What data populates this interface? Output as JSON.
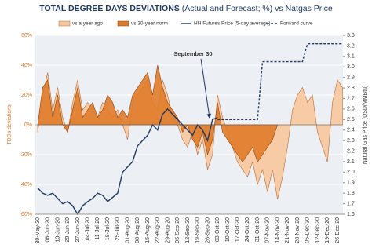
{
  "chart_data": {
    "type": "line",
    "title": "TOTAL DEGREE DAYS DEVIATIONS",
    "subtitle": "(Actual and Forecast; %) vs Natgas Price",
    "y_label": "TDDs deviations",
    "y2_label": "Natural Gas Price (USD/MMBtu)",
    "annotation": "September 30",
    "legend": "top",
    "grid": true,
    "categories": [
      "30-May-20",
      null,
      "06-Jun-20",
      null,
      "13-Jun-20",
      null,
      "20-Jun-20",
      null,
      "27-Jun-20",
      null,
      "04-Jul-20",
      null,
      "11-Jul-20",
      null,
      "18-Jul-20",
      null,
      "25-Jul-20",
      null,
      "01-Aug-20",
      null,
      "08-Aug-20",
      null,
      "15-Aug-20",
      null,
      "22-Aug-20",
      null,
      "29-Aug-20",
      null,
      "05-Sep-20",
      null,
      "12-Sep-20",
      null,
      "19-Sep-20",
      null,
      "26-Sep-20",
      null,
      "03-Oct-20",
      null,
      "10-Oct-20",
      null,
      "17-Oct-20",
      null,
      "24-Oct-20",
      null,
      "31-Oct-20",
      null,
      "07-Nov-20",
      null,
      "14-Nov-20",
      null,
      "21-Nov-20",
      null,
      "28-Nov-20",
      null,
      "05-Dec-20",
      null,
      "12-Dec-20",
      null,
      "19-Dec-20",
      null,
      "26-Dec-20",
      null
    ],
    "ylim": [
      -60,
      60
    ],
    "yticks": [
      {
        "value": -60,
        "label": "-60%"
      },
      {
        "value": -40,
        "label": "-40%"
      },
      {
        "value": -20,
        "label": "-20%"
      },
      {
        "value": 0,
        "label": "0%"
      },
      {
        "value": 20,
        "label": "20%"
      },
      {
        "value": 40,
        "label": "40%"
      },
      {
        "value": 60,
        "label": "60%"
      }
    ],
    "y2lim": [
      1.6,
      3.3
    ],
    "y2ticks": [
      1.6,
      1.7,
      1.8,
      1.9,
      {
        "value": 2.0,
        "label": "2.0"
      },
      2.1,
      2.2,
      2.3,
      2.4,
      2.5,
      2.6,
      2.7,
      2.8,
      2.9,
      {
        "value": 3.0,
        "label": "3.0"
      },
      3.1,
      3.2,
      3.3
    ],
    "series": [
      {
        "name": "vs a year ago",
        "kind": "area",
        "color": "#f7c79d",
        "stroke": "#b86a2e",
        "values": [
          -5,
          20,
          35,
          10,
          25,
          5,
          -5,
          15,
          30,
          10,
          15,
          10,
          5,
          15,
          10,
          5,
          10,
          0,
          -10,
          15,
          20,
          25,
          30,
          15,
          10,
          30,
          20,
          5,
          0,
          -10,
          -15,
          -5,
          -20,
          -10,
          -30,
          -20,
          20,
          5,
          -5,
          -15,
          -25,
          -30,
          -35,
          -25,
          -40,
          -30,
          -45,
          -30,
          -50,
          -35,
          -15,
          10,
          20,
          25,
          15,
          20,
          -5,
          -15,
          -25,
          15,
          30,
          25
        ]
      },
      {
        "name": "vs 30-year norm",
        "kind": "area",
        "color": "#e07b2a",
        "stroke": "#8a4310",
        "values": [
          0,
          25,
          30,
          5,
          20,
          0,
          -5,
          10,
          25,
          5,
          10,
          15,
          5,
          10,
          20,
          15,
          5,
          10,
          5,
          20,
          25,
          30,
          35,
          20,
          40,
          25,
          15,
          10,
          5,
          -5,
          0,
          -10,
          -15,
          -5,
          -20,
          -10,
          15,
          -5,
          -10,
          -15,
          -20,
          -25,
          -20,
          -15,
          -25,
          -20,
          -15,
          -10,
          0,
          null,
          null,
          null,
          null,
          null,
          null,
          null,
          null,
          null,
          null,
          null,
          null,
          null
        ]
      },
      {
        "name": "HH Futures Price (5-day average)",
        "kind": "line",
        "axis": "y2",
        "color": "#1f3864",
        "dash": false,
        "values": [
          1.85,
          1.8,
          1.78,
          1.8,
          1.75,
          1.7,
          1.72,
          1.68,
          1.6,
          1.68,
          1.72,
          1.75,
          1.8,
          1.78,
          1.72,
          1.76,
          1.8,
          2.0,
          2.05,
          2.1,
          2.25,
          2.3,
          2.35,
          2.45,
          2.4,
          2.55,
          2.6,
          2.55,
          2.5,
          2.45,
          2.4,
          2.35,
          2.45,
          2.4,
          2.3,
          2.5,
          2.52,
          null,
          null,
          null,
          null,
          null,
          null,
          null,
          null,
          null,
          null,
          null,
          null,
          null,
          null,
          null,
          null,
          null,
          null,
          null,
          null,
          null,
          null,
          null,
          null,
          null
        ]
      },
      {
        "name": "Forward curve",
        "kind": "line",
        "axis": "y2",
        "color": "#1f3864",
        "dash": true,
        "values": [
          null,
          null,
          null,
          null,
          null,
          null,
          null,
          null,
          null,
          null,
          null,
          null,
          null,
          null,
          null,
          null,
          null,
          null,
          null,
          null,
          null,
          null,
          null,
          null,
          null,
          null,
          null,
          null,
          null,
          null,
          null,
          null,
          null,
          null,
          null,
          null,
          2.5,
          2.5,
          2.5,
          2.5,
          2.5,
          2.5,
          2.5,
          2.5,
          2.5,
          3.05,
          3.05,
          3.05,
          3.05,
          3.05,
          3.05,
          3.05,
          3.05,
          3.05,
          3.22,
          3.22,
          3.22,
          3.22,
          3.22,
          3.22,
          3.22,
          3.22
        ]
      }
    ]
  }
}
